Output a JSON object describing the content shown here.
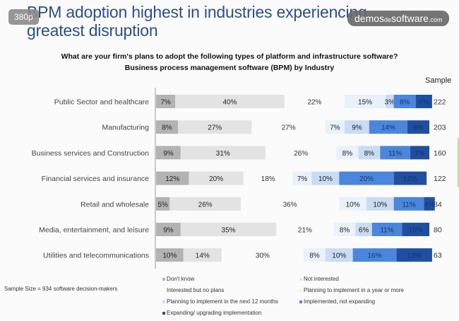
{
  "overlay": {
    "quality_badge": "380p",
    "watermark_main": "demos",
    "watermark_de": "de",
    "watermark_rest": "software",
    "watermark_tld": ".com"
  },
  "title_line1": "BPM adoption highest in industries experiencing",
  "title_line2": "greatest disruption",
  "chart_data": {
    "type": "bar",
    "orientation": "horizontal-stacked",
    "title": "What are your firm's plans to adopt the following types of platform and infrastructure software?",
    "subtitle": "Business process management software (BPM) by Industry",
    "sample_header": "Sample",
    "categories": [
      "Public Sector and healthcare",
      "Manufacturing",
      "Business services and Construction",
      "Financial services and insurance",
      "Retail and wholesale",
      "Media, entertainment, and leisure",
      "Utilities and telecommunications"
    ],
    "samples": [
      222,
      203,
      160,
      122,
      84,
      80,
      63
    ],
    "series": [
      {
        "name": "Don't know",
        "color": "#b3b3b3",
        "values": [
          7,
          8,
          9,
          12,
          5,
          9,
          10
        ]
      },
      {
        "name": "Not interested",
        "color": "#e3e3e3",
        "values": [
          40,
          27,
          31,
          20,
          26,
          35,
          14
        ]
      },
      {
        "name": "Interested but no plans",
        "color": "#fbfbfb",
        "values": [
          22,
          27,
          26,
          18,
          36,
          21,
          30
        ]
      },
      {
        "name": "Planning to implement in a year or more",
        "color": "#e9f1fb",
        "values": [
          15,
          7,
          8,
          7,
          10,
          8,
          8
        ]
      },
      {
        "name": "Planning to implement in the next 12 months",
        "color": "#c9dcf4",
        "values": [
          3,
          9,
          8,
          10,
          10,
          6,
          10
        ]
      },
      {
        "name": "Implemented, not expanding",
        "color": "#4a86dc",
        "values": [
          8,
          14,
          11,
          20,
          11,
          11,
          16
        ]
      },
      {
        "name": "Expanding/ upgrading implementation",
        "color": "#1f4fa0",
        "values": [
          6,
          8,
          7,
          12,
          4,
          10,
          13
        ]
      }
    ],
    "xlim": [
      0,
      100
    ],
    "legend_position": "bottom"
  },
  "legend": [
    "Don't know",
    "Not interested",
    "Interested but no plans",
    "Planning to implement in a year or more",
    "Planning to implement in the next 12 months",
    "Implemented, not expanding",
    "Expanding/ upgrading implementation"
  ],
  "note": "Sample Size = 934 software decision-makers"
}
